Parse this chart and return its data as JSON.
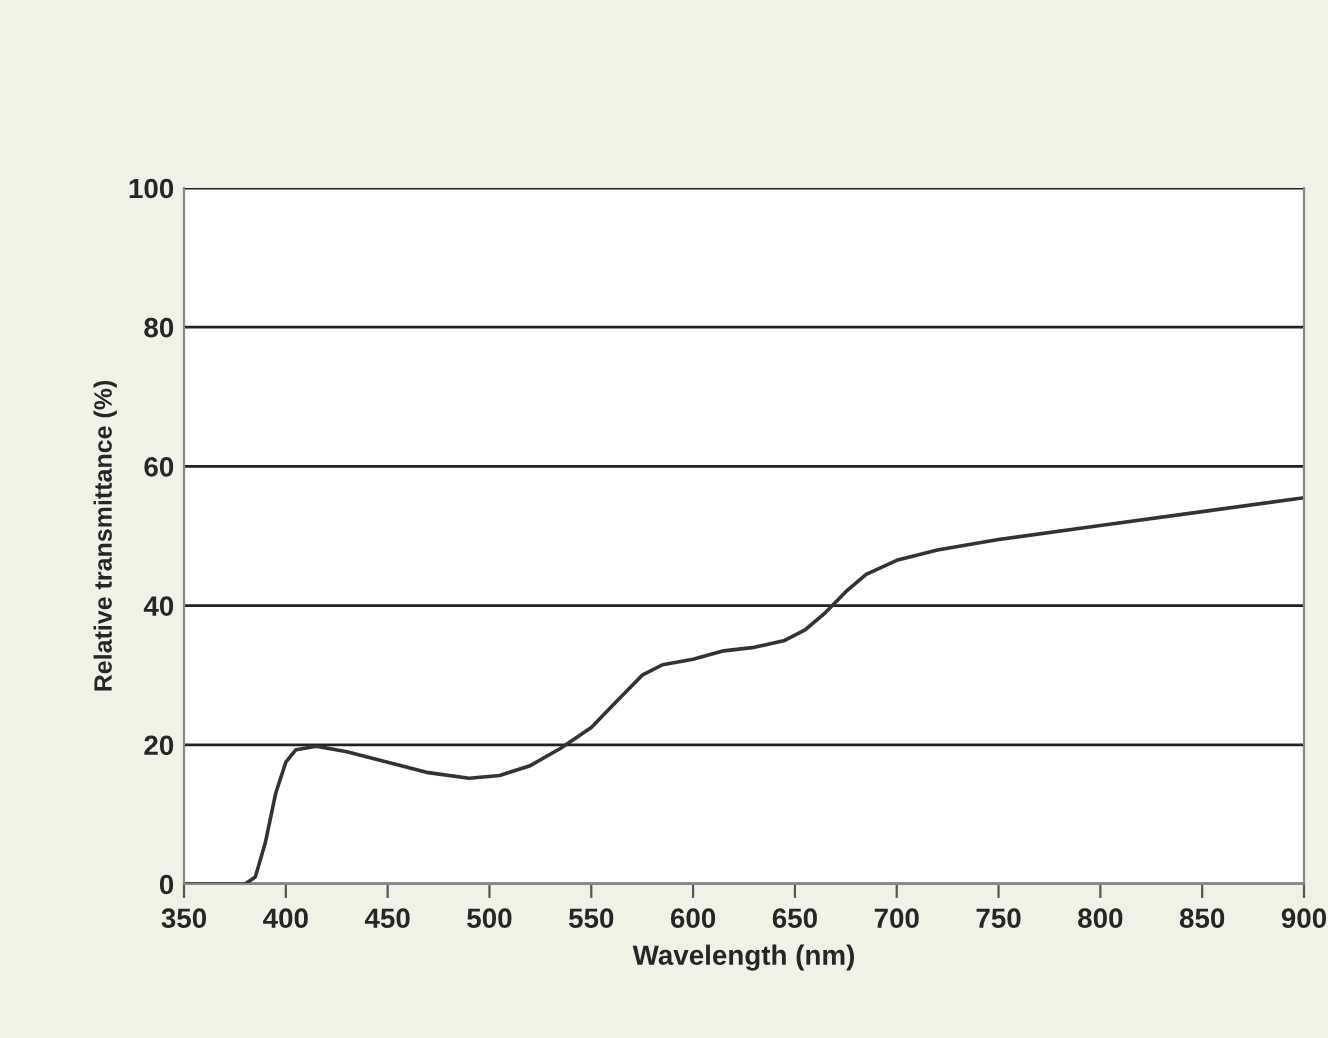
{
  "chart_data": {
    "type": "line",
    "xlabel": "Wavelength (nm)",
    "ylabel": "Relative transmittance (%)",
    "xlim": [
      350,
      900
    ],
    "xticks": [
      350,
      400,
      450,
      500,
      550,
      600,
      650,
      700,
      750,
      800,
      850,
      900
    ],
    "ylim": [
      0,
      100
    ],
    "yticks": [
      0,
      20,
      40,
      60,
      80,
      100
    ],
    "grid": "y",
    "marker": "none",
    "line_style": "solid",
    "series": [
      {
        "color": "#333333",
        "x": [
          350,
          365,
          380,
          385,
          390,
          395,
          400,
          405,
          415,
          430,
          450,
          470,
          490,
          505,
          520,
          535,
          550,
          565,
          575,
          585,
          600,
          615,
          630,
          645,
          655,
          665,
          675,
          685,
          700,
          720,
          750,
          800,
          850,
          900
        ],
        "values": [
          0,
          0,
          0,
          1,
          6,
          13,
          17.5,
          19.3,
          19.8,
          19,
          17.5,
          16,
          15.2,
          15.6,
          17,
          19.5,
          22.5,
          27,
          30,
          31.5,
          32.3,
          33.5,
          34,
          35,
          36.5,
          39,
          42,
          44.5,
          46.5,
          48,
          49.5,
          51.5,
          53.5,
          55.5
        ]
      }
    ]
  }
}
